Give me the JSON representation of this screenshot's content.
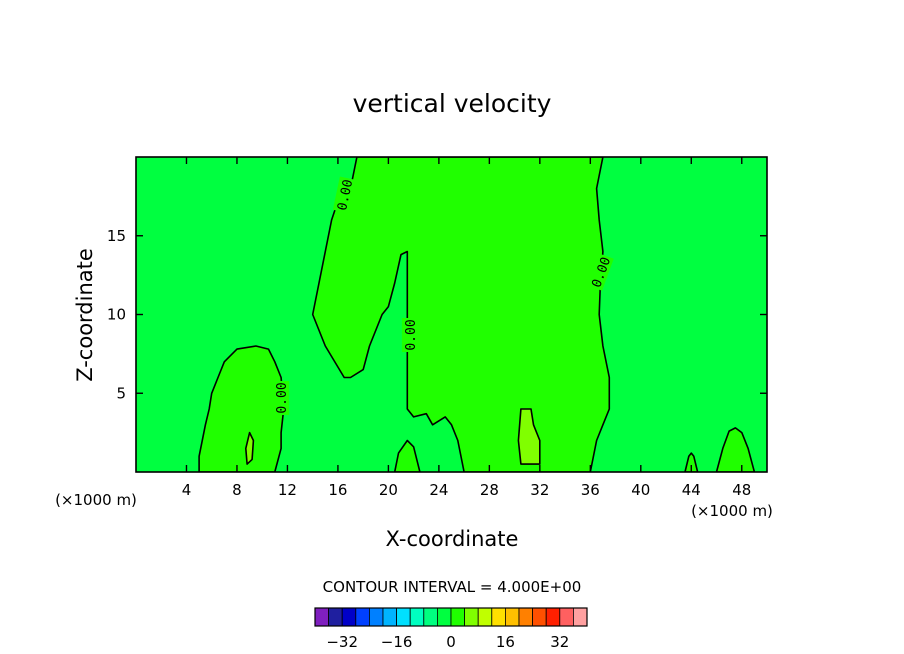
{
  "chart_data": {
    "type": "contour",
    "title": "vertical velocity",
    "xlabel": "X-coordinate",
    "ylabel": "Z-coordinate",
    "x_unit_label": "(×1000 m)",
    "xlim": [
      0,
      50
    ],
    "ylim": [
      0,
      20
    ],
    "x_ticks": [
      4,
      8,
      12,
      16,
      20,
      24,
      28,
      32,
      36,
      40,
      44,
      48
    ],
    "y_ticks": [
      5,
      10,
      15
    ],
    "contour_interval_text": "CONTOUR INTERVAL = 4.000E+00",
    "contour_interval": 4.0,
    "contour_label": "0.00",
    "colors": {
      "background_field": "#00ff40",
      "zero_to_4_field": "#20ff00",
      "4_to_8_field": "#80ff00"
    },
    "colorbar": {
      "colors": [
        "#7f1fbf",
        "#1f1f9f",
        "#0000c8",
        "#0040ff",
        "#0080ff",
        "#00b4ff",
        "#00e0ff",
        "#00ffc0",
        "#00ff80",
        "#00ff40",
        "#20ff00",
        "#80ff00",
        "#c0ff00",
        "#ffe000",
        "#ffc000",
        "#ff8000",
        "#ff5000",
        "#ff2000",
        "#ff6060",
        "#ffa0a0"
      ],
      "tick_labels": [
        "-32",
        "-16",
        "0",
        "16",
        "32"
      ],
      "tick_values": [
        -32,
        -16,
        0,
        16,
        32
      ],
      "min": -40,
      "max": 40
    },
    "zero_contour_regions": [
      {
        "name": "main-updraft",
        "points": [
          [
            16.5,
            6
          ],
          [
            15,
            8
          ],
          [
            14,
            10
          ],
          [
            14.5,
            12
          ],
          [
            15,
            14
          ],
          [
            15.5,
            16
          ],
          [
            16,
            17.2
          ],
          [
            17,
            18
          ],
          [
            17.5,
            20
          ],
          [
            37,
            20
          ],
          [
            36.5,
            18
          ],
          [
            36.7,
            16
          ],
          [
            37,
            14
          ],
          [
            36.8,
            12
          ],
          [
            36.7,
            10
          ],
          [
            37,
            8
          ],
          [
            37.5,
            6
          ],
          [
            37.5,
            4
          ],
          [
            37,
            3
          ],
          [
            36.5,
            2
          ],
          [
            36,
            0
          ],
          [
            26,
            0
          ],
          [
            25.5,
            2
          ],
          [
            25,
            3
          ],
          [
            24.5,
            3.5
          ],
          [
            23.5,
            3
          ],
          [
            23,
            3.7
          ],
          [
            22,
            3.5
          ],
          [
            21.5,
            4
          ],
          [
            21.5,
            10
          ],
          [
            21.5,
            14
          ],
          [
            21,
            13.8
          ],
          [
            20.5,
            12
          ],
          [
            20,
            10.5
          ],
          [
            19.5,
            10
          ],
          [
            18.5,
            8
          ],
          [
            18,
            6.5
          ],
          [
            17,
            6
          ]
        ]
      },
      {
        "name": "left-updraft",
        "points": [
          [
            5,
            0
          ],
          [
            5,
            1
          ],
          [
            5.5,
            3
          ],
          [
            5.8,
            4
          ],
          [
            6,
            5
          ],
          [
            6.5,
            6
          ],
          [
            7,
            7
          ],
          [
            8,
            7.8
          ],
          [
            9.5,
            8
          ],
          [
            10.5,
            7.8
          ],
          [
            11,
            7
          ],
          [
            11.5,
            6
          ],
          [
            11.7,
            4
          ],
          [
            11.5,
            2.5
          ],
          [
            11.5,
            1.5
          ],
          [
            11,
            0
          ]
        ]
      },
      {
        "name": "right-updraft",
        "points": [
          [
            46,
            0
          ],
          [
            46.5,
            1.5
          ],
          [
            47,
            2.6
          ],
          [
            47.5,
            2.8
          ],
          [
            48,
            2.5
          ],
          [
            48.5,
            1.5
          ],
          [
            49,
            0
          ]
        ]
      },
      {
        "name": "small-updraft-44",
        "points": [
          [
            43.5,
            0
          ],
          [
            43.8,
            1
          ],
          [
            44,
            1.2
          ],
          [
            44.2,
            1
          ],
          [
            44.5,
            0
          ]
        ]
      },
      {
        "name": "small-updraft-19",
        "points": [
          [
            20.5,
            0
          ],
          [
            20.8,
            1.2
          ],
          [
            21.5,
            2
          ],
          [
            22,
            1.6
          ],
          [
            22.5,
            0
          ]
        ]
      }
    ],
    "positive_regions": [
      {
        "name": "core-31",
        "points": [
          [
            30.5,
            0.5
          ],
          [
            30.3,
            2
          ],
          [
            30.5,
            4
          ],
          [
            31.3,
            4
          ],
          [
            31.5,
            3
          ],
          [
            32,
            2
          ],
          [
            32,
            0.5
          ]
        ]
      },
      {
        "name": "core-9",
        "points": [
          [
            8.8,
            0.5
          ],
          [
            8.7,
            1.5
          ],
          [
            9,
            2.5
          ],
          [
            9.3,
            2
          ],
          [
            9.2,
            0.8
          ]
        ]
      }
    ],
    "contour_label_positions": [
      {
        "text": "0.00",
        "x": 16.5,
        "y": 17.6,
        "rotation": -78
      },
      {
        "text": "0.00",
        "x": 21.7,
        "y": 8.7,
        "rotation": -90
      },
      {
        "text": "0.00",
        "x": 36.8,
        "y": 12.7,
        "rotation": -70
      },
      {
        "text": "0.00",
        "x": 11.5,
        "y": 4.7,
        "rotation": -90
      }
    ]
  }
}
